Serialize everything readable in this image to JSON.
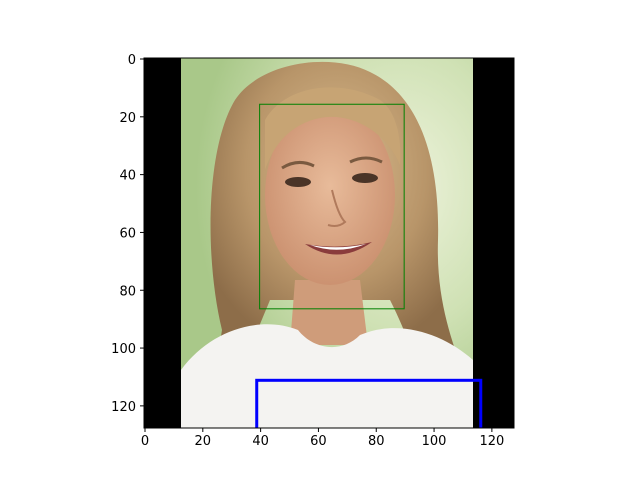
{
  "image": {
    "description_rows": 128,
    "description_cols": 128,
    "letterbox_color": "#000000",
    "background_colors": [
      "#cfe1b4",
      "#e3ecd0",
      "#a9c889",
      "#f3f5ea"
    ],
    "hair_color": "#b89569",
    "skin_color": "#d8a784",
    "shirt_color": "#f4f3f1"
  },
  "axes": {
    "xlim": [
      0,
      128
    ],
    "ylim": [
      128,
      0
    ],
    "x_ticks": [
      0,
      20,
      40,
      60,
      80,
      100,
      120
    ],
    "y_ticks": [
      0,
      20,
      40,
      60,
      80,
      100,
      120
    ]
  },
  "boxes": [
    {
      "name": "face-box",
      "color": "#008000",
      "x0": 40.5,
      "y0": 16.5,
      "x1": 90.5,
      "y1": 84.5,
      "line_width": 1
    },
    {
      "name": "lower-box",
      "color": "#0000ff",
      "x0": 39.5,
      "y0": 112,
      "x1": 117,
      "y1": 128,
      "line_width": 3
    }
  ]
}
